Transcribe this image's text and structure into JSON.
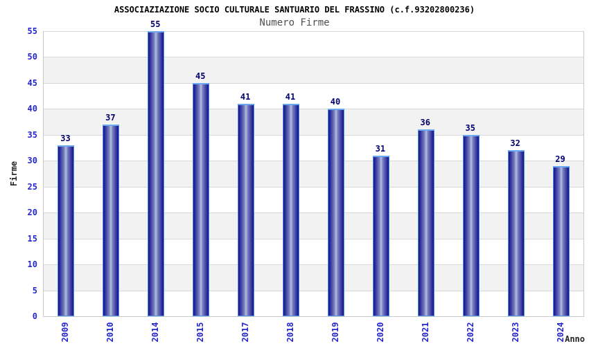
{
  "chart_data": {
    "type": "bar",
    "title": "ASSOCIAZIAZIONE SOCIO CULTURALE SANTUARIO DEL FRASSINO (c.f.93202800236)",
    "subtitle": "Numero Firme",
    "xlabel": "Anno",
    "ylabel": "Firme",
    "categories": [
      "2009",
      "2010",
      "2014",
      "2015",
      "2017",
      "2018",
      "2019",
      "2020",
      "2021",
      "2022",
      "2023",
      "2024"
    ],
    "values": [
      33,
      37,
      55,
      45,
      41,
      41,
      40,
      31,
      36,
      35,
      32,
      29
    ],
    "ylim": [
      0,
      55
    ],
    "ytick_step": 5,
    "yticks": [
      0,
      5,
      10,
      15,
      20,
      25,
      30,
      35,
      40,
      45,
      50,
      55
    ],
    "legend": "none",
    "grid": "horizontal gridlines with alternating white/gray bands every 5 units",
    "colors": {
      "bar_edge": "#14148a",
      "bar_center": "#b9c1e3",
      "bar_outline": "#4f93e6",
      "bar_cap": "#6aa9f2",
      "tick_label": "#2525cd",
      "value_label": "#00006e",
      "title": "#000000",
      "subtitle": "#4f4f4f",
      "band_gray": "#f2f2f2",
      "gridline": "#d8d8d8",
      "background": "#ffffff"
    }
  }
}
